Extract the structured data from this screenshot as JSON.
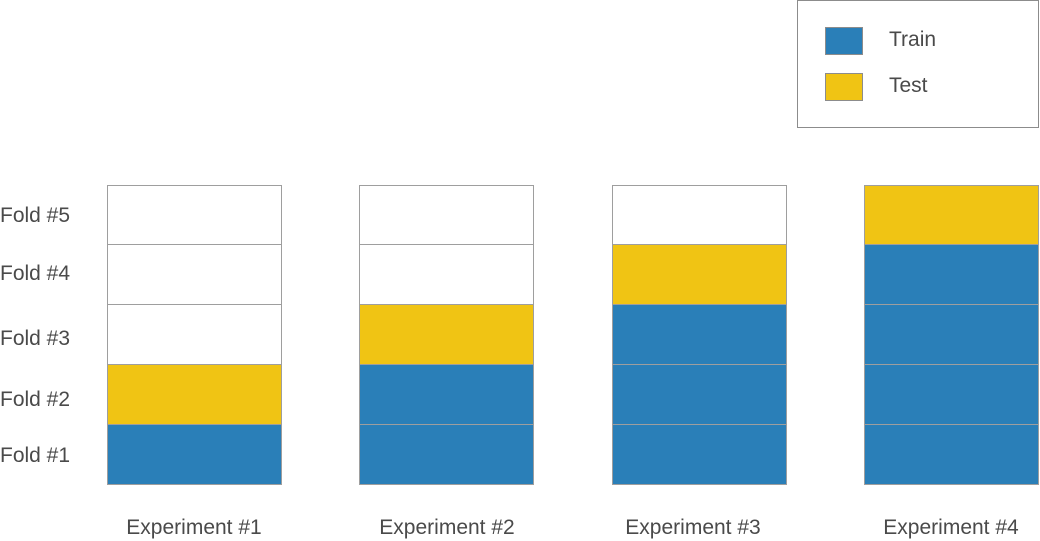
{
  "colors": {
    "train": "#2a7fb8",
    "test": "#f0c414",
    "empty": "#ffffff"
  },
  "legend": {
    "train_label": "Train",
    "test_label": "Test"
  },
  "folds": [
    "Fold #1",
    "Fold #2",
    "Fold #3",
    "Fold #4",
    "Fold #5"
  ],
  "experiments": [
    {
      "label": "Experiment #1",
      "cells": [
        "train",
        "test",
        "empty",
        "empty",
        "empty"
      ]
    },
    {
      "label": "Experiment #2",
      "cells": [
        "train",
        "train",
        "test",
        "empty",
        "empty"
      ]
    },
    {
      "label": "Experiment #3",
      "cells": [
        "train",
        "train",
        "train",
        "test",
        "empty"
      ]
    },
    {
      "label": "Experiment #4",
      "cells": [
        "train",
        "train",
        "train",
        "train",
        "test"
      ]
    }
  ]
}
